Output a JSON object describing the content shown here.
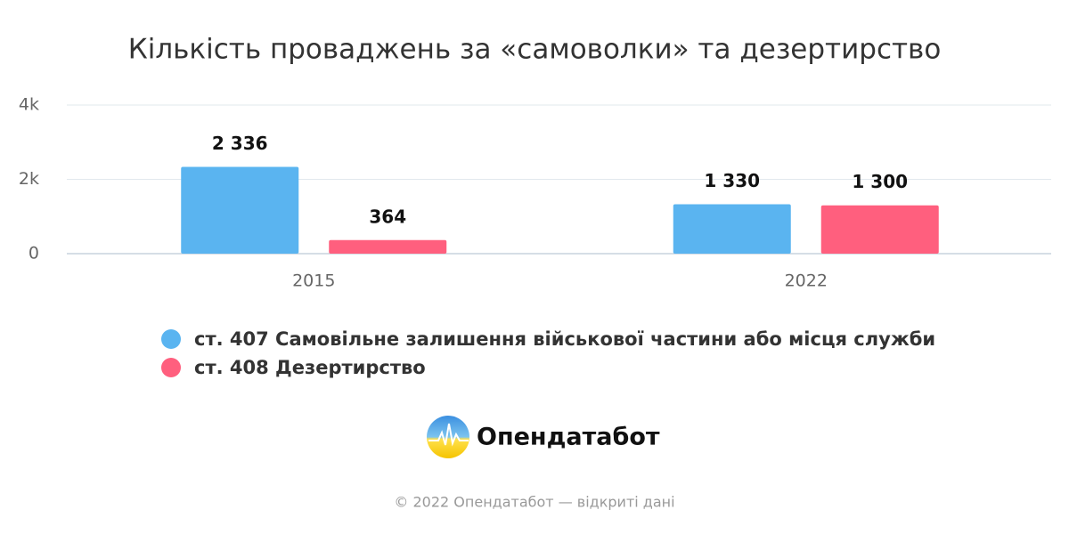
{
  "chart_data": {
    "type": "bar",
    "title": "Кількість проваджень за «самоволки» та дезертирство",
    "categories": [
      "2015",
      "2022"
    ],
    "series": [
      {
        "name": "ст. 407 Самовільне залишення військової частини або місця служби",
        "color": "#5ab4f0",
        "values": [
          2336,
          1330
        ],
        "value_labels": [
          "2 336",
          "1 330"
        ]
      },
      {
        "name": "ст. 408 Дезертирство",
        "color": "#ff5f7e",
        "values": [
          364,
          1300
        ],
        "value_labels": [
          "364",
          "1 300"
        ]
      }
    ],
    "ylim": [
      0,
      4000
    ],
    "yticks": [
      0,
      {
        "value": 2000,
        "label": "2k"
      },
      {
        "value": 4000,
        "label": "4k"
      }
    ],
    "grid": true
  },
  "logo": "Опендатабот",
  "footer": "© 2022 Опендатабот — відкриті дані"
}
